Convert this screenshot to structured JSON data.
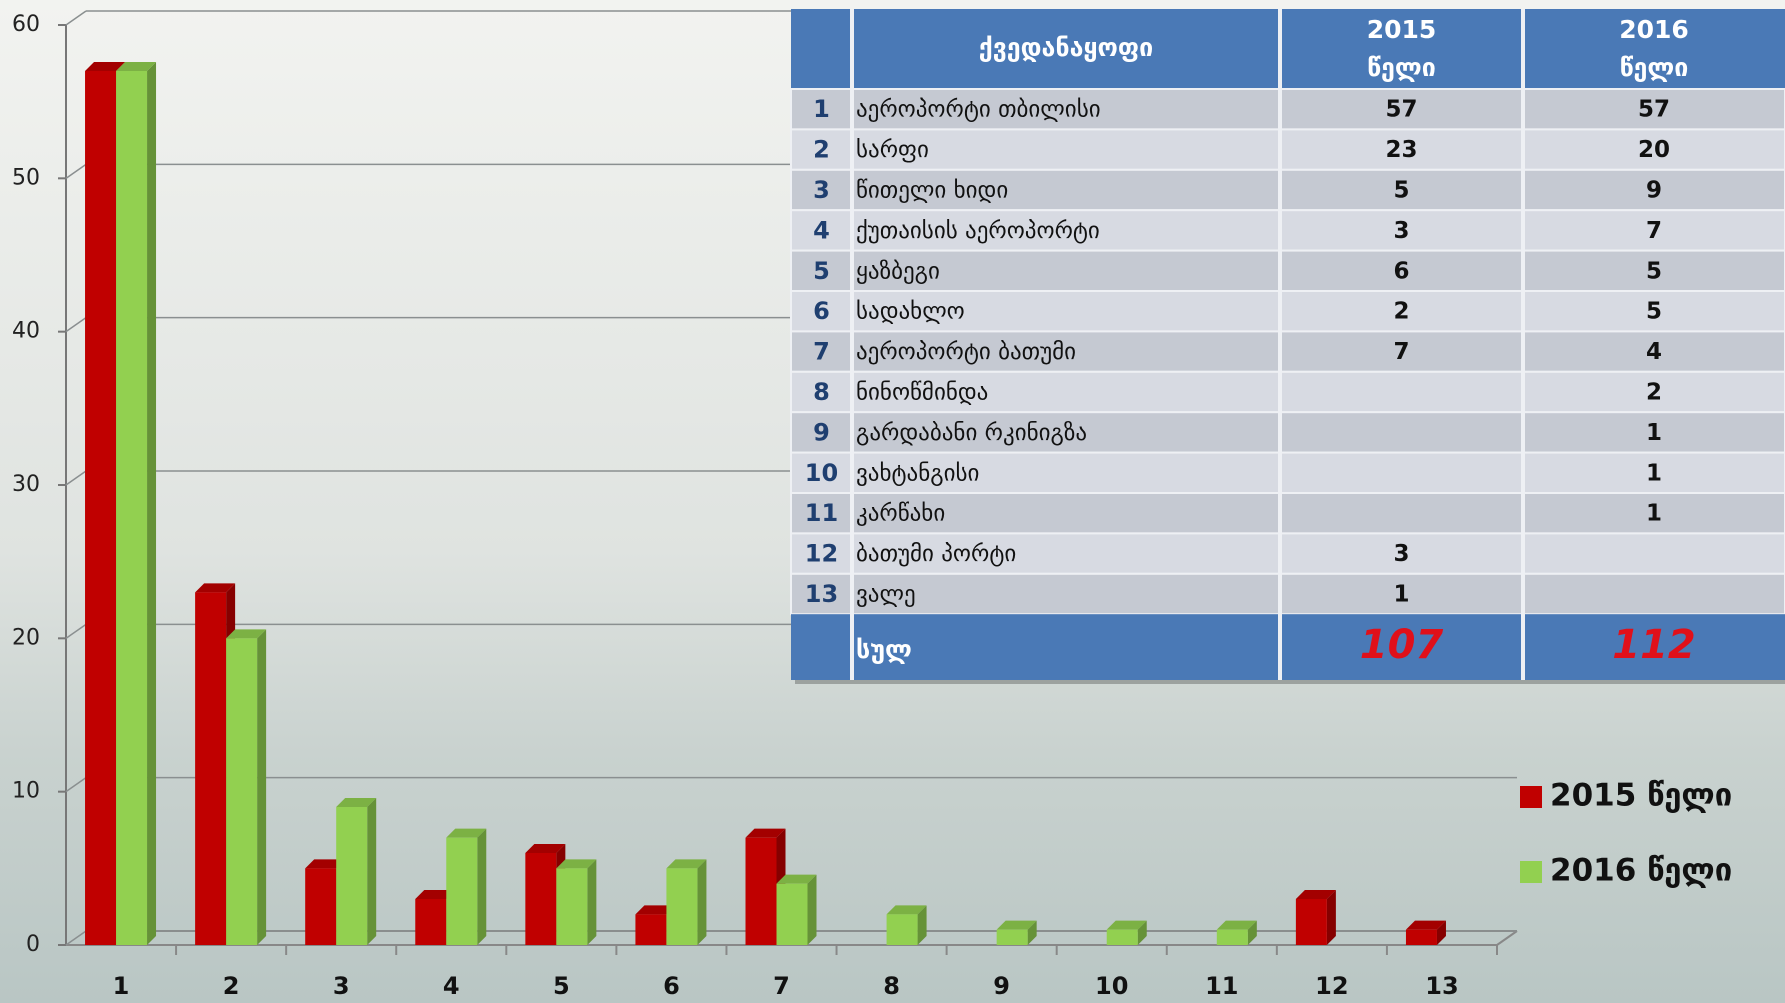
{
  "chart_data": {
    "type": "bar",
    "categories": [
      "1",
      "2",
      "3",
      "4",
      "5",
      "6",
      "7",
      "8",
      "9",
      "10",
      "11",
      "12",
      "13"
    ],
    "series": [
      {
        "name": "2015 წელი",
        "color": "#c00000",
        "values": [
          57,
          23,
          5,
          3,
          6,
          2,
          7,
          null,
          null,
          null,
          null,
          3,
          1
        ]
      },
      {
        "name": "2016 წელი",
        "color": "#92d050",
        "values": [
          57,
          20,
          9,
          7,
          5,
          5,
          4,
          2,
          1,
          1,
          1,
          null,
          null
        ]
      }
    ],
    "ylim": [
      0,
      60
    ],
    "yticks": [
      0,
      10,
      20,
      30,
      40,
      50,
      60
    ],
    "grid": true,
    "legend": "right"
  },
  "table": {
    "header": {
      "name": "ქვედანაყოფი",
      "years": [
        [
          "2015",
          "წელი"
        ],
        [
          "2016",
          "წელი"
        ]
      ]
    },
    "rows": [
      [
        1,
        "აეროპორტი თბილისი",
        57,
        57
      ],
      [
        2,
        "სარფი",
        23,
        20
      ],
      [
        3,
        "წითელი ხიდი",
        5,
        9
      ],
      [
        4,
        "ქუთაისის აეროპორტი",
        3,
        7
      ],
      [
        5,
        "ყაზბეგი",
        6,
        5
      ],
      [
        6,
        "სადახლო",
        2,
        5
      ],
      [
        7,
        "აეროპორტი ბათუმი",
        7,
        4
      ],
      [
        8,
        "ნინოწმინდა",
        null,
        2
      ],
      [
        9,
        "გარდაბანი რკინიგზა",
        null,
        1
      ],
      [
        10,
        "ვახტანგისი",
        null,
        1
      ],
      [
        11,
        "კარწახი",
        null,
        1
      ],
      [
        12,
        "ბათუმი პორტი",
        3,
        null
      ],
      [
        13,
        "ვალე",
        1,
        null
      ]
    ],
    "total": [
      "სულ",
      107,
      112
    ]
  }
}
